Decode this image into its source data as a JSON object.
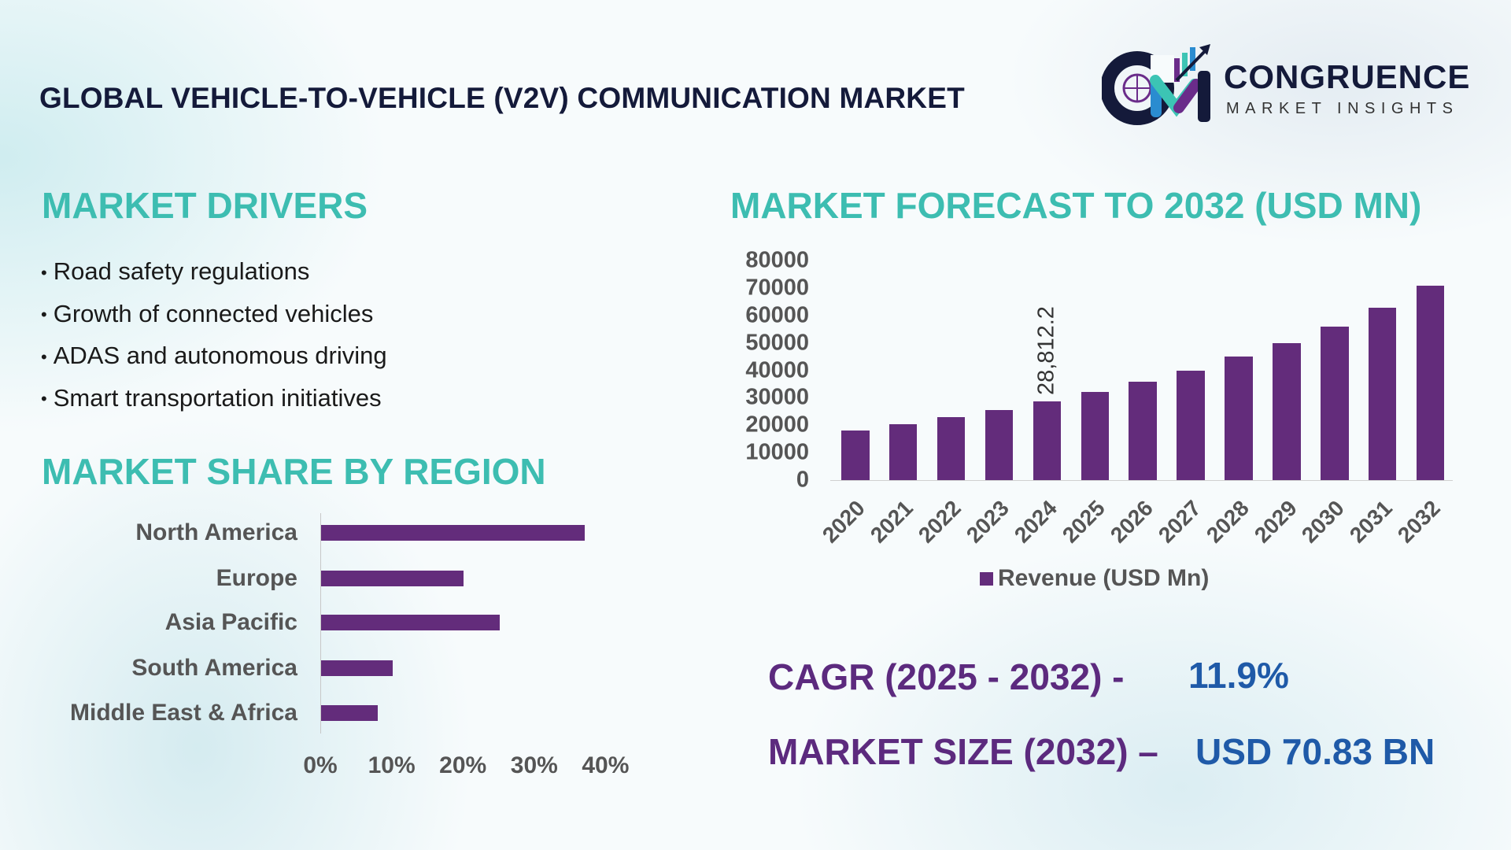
{
  "header": {
    "title": "GLOBAL VEHICLE-TO-VEHICLE (V2V) COMMUNICATION MARKET"
  },
  "logo": {
    "name": "CONGRUENCE",
    "tagline": "MARKET INSIGHTS"
  },
  "drivers": {
    "heading": "MARKET DRIVERS",
    "items": [
      "Road safety regulations",
      "Growth of connected vehicles",
      "ADAS and autonomous driving",
      "Smart transportation initiatives"
    ]
  },
  "stats": {
    "cagr_label": "CAGR (2025 - 2032) -",
    "cagr_value": "11.9%",
    "size_label": "MARKET SIZE (2032) –",
    "size_value": "USD 70.83 BN"
  },
  "colors": {
    "bar": "#632c7b",
    "heading": "#3dbdb1",
    "value": "#1f5aa8"
  },
  "chart_data": [
    {
      "type": "bar",
      "orientation": "horizontal",
      "title": "MARKET SHARE BY REGION",
      "categories": [
        "North America",
        "Europe",
        "Asia Pacific",
        "South America",
        "Middle East & Africa"
      ],
      "values": [
        37,
        20,
        25,
        10,
        8
      ],
      "unit": "%",
      "xlim": [
        0,
        40
      ],
      "xticks": [
        "0%",
        "10%",
        "20%",
        "30%",
        "40%"
      ],
      "grid": false
    },
    {
      "type": "bar",
      "title": "MARKET FORECAST TO 2032 (USD MN)",
      "categories": [
        "2020",
        "2021",
        "2022",
        "2023",
        "2024",
        "2025",
        "2026",
        "2027",
        "2028",
        "2029",
        "2030",
        "2031",
        "2032"
      ],
      "series": [
        {
          "name": "Revenue (USD Mn)",
          "values": [
            18000,
            20300,
            22900,
            25400,
            28812.2,
            32000,
            35700,
            40000,
            44900,
            50000,
            56000,
            62900,
            70830
          ]
        }
      ],
      "data_labels": [
        {
          "category": "2024",
          "text": "28,812.2"
        }
      ],
      "ylim": [
        0,
        80000
      ],
      "yticks": [
        "0",
        "10000",
        "20000",
        "30000",
        "40000",
        "50000",
        "60000",
        "70000",
        "80000"
      ],
      "legend": "bottom",
      "grid": false
    }
  ]
}
